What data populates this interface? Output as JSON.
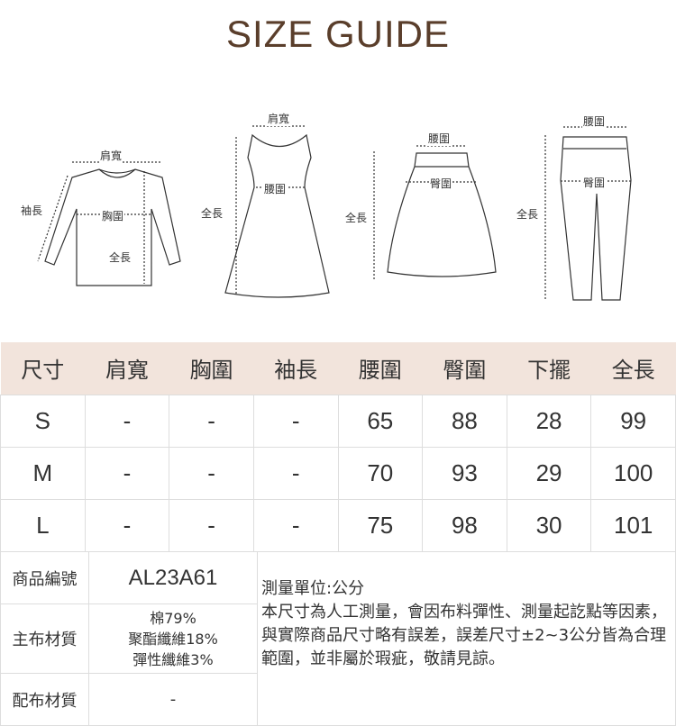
{
  "title": "SIZE GUIDE",
  "diagram_labels": {
    "top": {
      "shoulder": "肩寬",
      "sleeve": "袖長",
      "chest": "胸圍",
      "length": "全長"
    },
    "dress": {
      "shoulder": "肩寬",
      "length": "全長",
      "waist": "腰圍"
    },
    "skirt": {
      "waist": "腰圍",
      "hip": "臀圍",
      "length": "全長"
    },
    "pants": {
      "waist": "腰圍",
      "hip": "臀圍",
      "length": "全長"
    }
  },
  "table": {
    "headers": [
      "尺寸",
      "肩寬",
      "胸圍",
      "袖長",
      "腰圍",
      "臀圍",
      "下擺",
      "全長"
    ],
    "rows": [
      [
        "S",
        "-",
        "-",
        "-",
        "65",
        "88",
        "28",
        "99"
      ],
      [
        "M",
        "-",
        "-",
        "-",
        "70",
        "93",
        "29",
        "100"
      ],
      [
        "L",
        "-",
        "-",
        "-",
        "75",
        "98",
        "30",
        "101"
      ]
    ]
  },
  "info": {
    "code_label": "商品編號",
    "code": "AL23A61",
    "main_label": "主布材質",
    "main": [
      "棉79%",
      "聚酯纖維18%",
      "彈性纖維3%"
    ],
    "sub_label": "配布材質",
    "sub": "-",
    "unit": "測量單位:公分",
    "note": "本尺寸為人工測量，會因布料彈性、測量起訖點等因素，與實際商品尺寸略有誤差，誤差尺寸±2~3公分皆為合理範圍，並非屬於瑕疵，敬請見諒。"
  },
  "colors": {
    "title": "#5a3e2b",
    "header_bg": "#f2e4dc"
  }
}
